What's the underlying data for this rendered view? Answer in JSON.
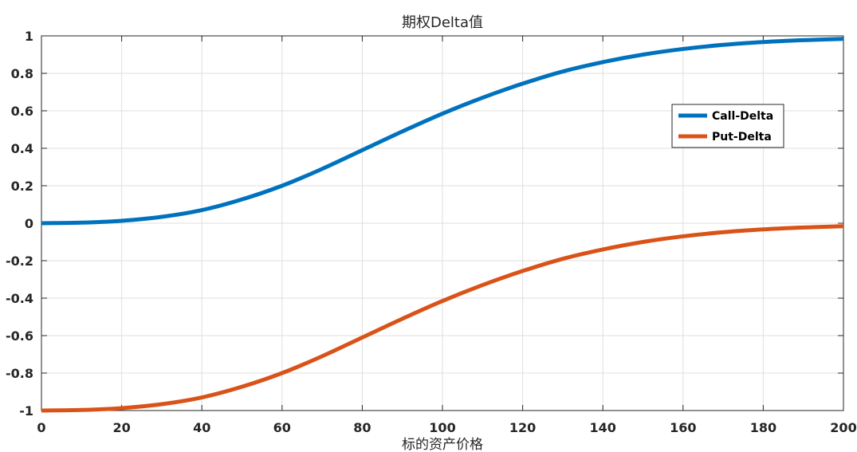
{
  "chart_data": {
    "type": "line",
    "title": "期权Delta值",
    "xlabel": "标的资产价格",
    "ylabel": "",
    "xlim": [
      0,
      200
    ],
    "ylim": [
      -1,
      1
    ],
    "xticks": [
      "0",
      "20",
      "40",
      "60",
      "80",
      "100",
      "120",
      "140",
      "160",
      "180",
      "200"
    ],
    "yticks": [
      "1",
      "0.8",
      "0.6",
      "0.4",
      "0.2",
      "0",
      "-0.2",
      "-0.4",
      "-0.6",
      "-0.8",
      "-1"
    ],
    "grid": true,
    "legend_position": "right",
    "x": [
      0,
      10,
      20,
      30,
      40,
      50,
      60,
      70,
      80,
      90,
      100,
      110,
      120,
      130,
      140,
      150,
      160,
      170,
      180,
      190,
      200
    ],
    "series": [
      {
        "name": "Call-Delta",
        "color": "#0072BD",
        "values": [
          0.0,
          0.003,
          0.013,
          0.034,
          0.07,
          0.127,
          0.2,
          0.29,
          0.39,
          0.49,
          0.585,
          0.67,
          0.745,
          0.81,
          0.86,
          0.9,
          0.93,
          0.952,
          0.967,
          0.977,
          0.984
        ]
      },
      {
        "name": "Put-Delta",
        "color": "#D95319",
        "values": [
          -1.0,
          -0.997,
          -0.987,
          -0.966,
          -0.93,
          -0.873,
          -0.8,
          -0.71,
          -0.61,
          -0.51,
          -0.415,
          -0.33,
          -0.255,
          -0.19,
          -0.14,
          -0.1,
          -0.07,
          -0.048,
          -0.033,
          -0.023,
          -0.016
        ]
      }
    ]
  }
}
